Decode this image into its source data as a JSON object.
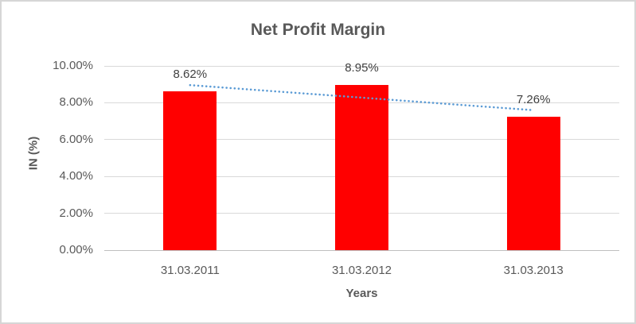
{
  "chart_data": {
    "type": "bar",
    "title": "Net Profit Margin",
    "categories": [
      "31.03.2011",
      "31.03.2012",
      "31.03.2013"
    ],
    "values": [
      8.62,
      8.95,
      7.26
    ],
    "data_labels": [
      "8.62%",
      "8.95%",
      "7.26%"
    ],
    "xlabel": "Years",
    "ylabel": "IN (%)",
    "ylim": [
      0,
      10
    ],
    "ytick_labels": [
      "0.00%",
      "2.00%",
      "4.00%",
      "6.00%",
      "8.00%",
      "10.00%"
    ],
    "grid": true,
    "legend": "none",
    "bar_color": "#ff0000",
    "trendline": {
      "style": "dotted",
      "type": "linear",
      "color": "#5b9bd5"
    },
    "colors": {
      "title_text": "#595959",
      "axis_text": "#595959",
      "data_label_text": "#404040",
      "gridline": "#d9d9d9",
      "axis_line": "#bfbfbf",
      "chart_border": "#d6d6d6"
    }
  }
}
